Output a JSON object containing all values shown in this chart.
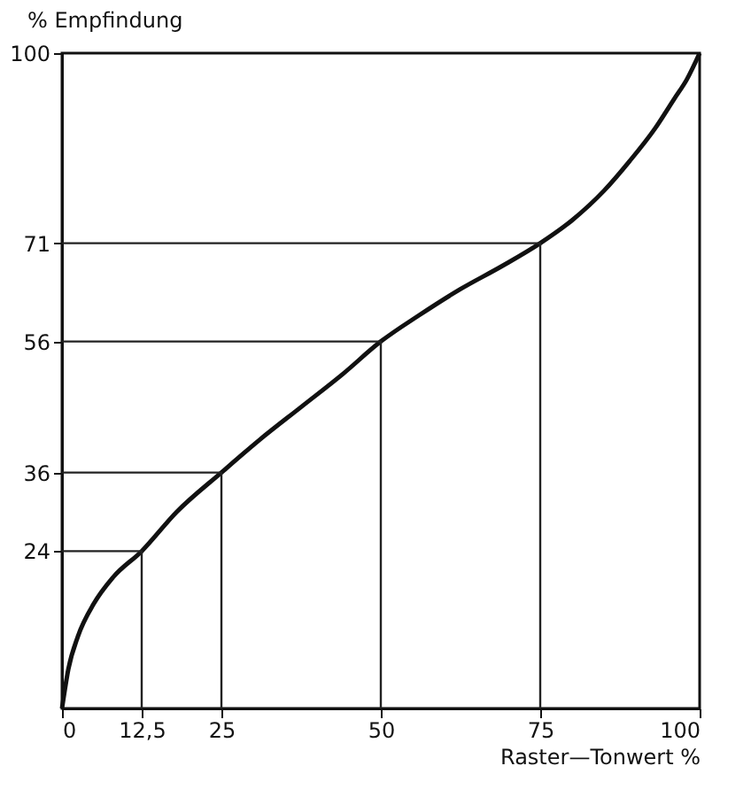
{
  "chart_data": {
    "type": "line",
    "xlabel": "Raster—Tonwert %",
    "ylabel": "% Empfindung",
    "x": [
      0,
      1,
      2.5,
      5,
      8,
      12.5,
      18,
      25,
      31,
      37.5,
      44,
      50,
      56,
      62.5,
      69,
      75,
      80,
      85,
      89,
      93,
      96,
      98,
      100
    ],
    "series": [
      {
        "color": "#111111",
        "values": [
          0,
          6,
          11,
          16,
          20,
          24,
          30,
          36,
          41,
          46,
          51,
          56,
          60,
          64,
          67.5,
          71,
          74.5,
          79,
          83.5,
          88.5,
          93,
          96,
          100
        ]
      },
      {
        "color": "#222222",
        "x": [
          0,
          12.5,
          12.5
        ],
        "values": [
          24,
          24,
          0
        ]
      },
      {
        "color": "#222222",
        "x": [
          0,
          25,
          25
        ],
        "values": [
          36,
          36,
          0
        ]
      },
      {
        "color": "#222222",
        "x": [
          0,
          50,
          50
        ],
        "values": [
          56,
          56,
          0
        ]
      },
      {
        "color": "#222222",
        "x": [
          0,
          75,
          75
        ],
        "values": [
          71,
          71,
          0
        ]
      }
    ],
    "xlim": [
      0,
      100
    ],
    "ylim": [
      0,
      100
    ],
    "xticks": [
      0,
      {
        "value": 12.5,
        "label": "12,5"
      },
      25,
      50,
      75,
      100
    ],
    "yticks": [
      24,
      36,
      56,
      71,
      100
    ],
    "grid": false,
    "marker": "none",
    "line_style": "solid"
  }
}
